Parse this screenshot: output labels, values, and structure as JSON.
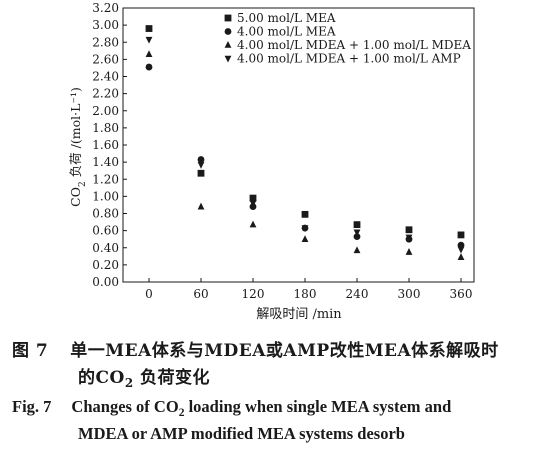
{
  "chart_data": {
    "type": "scatter",
    "x": [
      0,
      60,
      120,
      180,
      240,
      300,
      360
    ],
    "xlim": [
      -30,
      375
    ],
    "ylim": [
      0,
      3.2
    ],
    "xlabel": "解吸时间 /min",
    "ylabel_pre": "CO",
    "ylabel_sub": "2",
    "ylabel_post": " 负荷 /(mol·L⁻¹)",
    "x_tick_labels": [
      "0",
      "60",
      "120",
      "180",
      "240",
      "300",
      "360"
    ],
    "y_tick_labels": [
      "0.00",
      "0.20",
      "0.40",
      "0.60",
      "0.80",
      "1.00",
      "1.20",
      "1.40",
      "1.60",
      "1.80",
      "2.00",
      "2.20",
      "2.40",
      "2.60",
      "2.80",
      "3.00",
      "3.20"
    ],
    "legend_position": "top-right",
    "series": [
      {
        "name": "5.00 mol/L MEA",
        "marker": "square",
        "values": [
          2.96,
          1.27,
          0.98,
          0.79,
          0.67,
          0.61,
          0.55
        ]
      },
      {
        "name": "4.00 mol/L MEA",
        "marker": "circle",
        "values": [
          2.51,
          1.43,
          0.88,
          0.63,
          0.53,
          0.5,
          0.43
        ]
      },
      {
        "name": "4.00 mol/L MDEA + 1.00 mol/L MDEA",
        "marker": "triangle-up",
        "values": [
          2.66,
          0.88,
          0.67,
          0.5,
          0.37,
          0.35,
          0.29
        ]
      },
      {
        "name": "4.00 mol/L MDEA + 1.00 mol/L AMP",
        "marker": "triangle-down",
        "values": [
          2.83,
          1.37,
          0.92,
          0.63,
          0.58,
          0.52,
          0.38
        ]
      }
    ],
    "marker_color": "#1a1a1a"
  },
  "caption": {
    "cn_label": "图 7",
    "cn_line1": "单一MEA体系与MDEA或AMP改性MEA体系解吸时",
    "cn_line2_pre": "的CO",
    "cn_line2_sub": "2",
    "cn_line2_post": " 负荷变化",
    "en_label": "Fig. 7",
    "en_line1_pre": "Changes of CO",
    "en_line1_sub": "2",
    "en_line1_post": " loading when single MEA system and",
    "en_line2": "MDEA or AMP modified MEA systems desorb"
  }
}
